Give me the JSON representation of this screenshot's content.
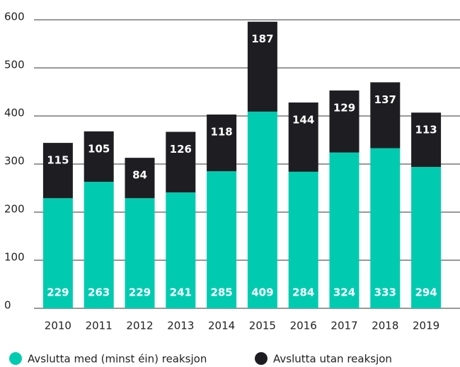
{
  "chart_data": {
    "type": "stacked_bar",
    "categories": [
      "2010",
      "2011",
      "2012",
      "2013",
      "2014",
      "2015",
      "2016",
      "2017",
      "2018",
      "2019"
    ],
    "series": [
      {
        "name": "Avslutta med (minst éin) reaksjon",
        "color": "#00cbb0",
        "values": [
          229,
          263,
          229,
          241,
          285,
          409,
          284,
          324,
          333,
          294
        ]
      },
      {
        "name": "Avslutta utan reaksjon",
        "color": "#1e1e22",
        "values": [
          115,
          105,
          84,
          126,
          118,
          187,
          144,
          129,
          137,
          113
        ]
      }
    ],
    "ylim": [
      0,
      600
    ],
    "yticks": [
      0,
      100,
      200,
      300,
      400,
      500,
      600
    ],
    "grid": true,
    "legend": "bottom"
  }
}
